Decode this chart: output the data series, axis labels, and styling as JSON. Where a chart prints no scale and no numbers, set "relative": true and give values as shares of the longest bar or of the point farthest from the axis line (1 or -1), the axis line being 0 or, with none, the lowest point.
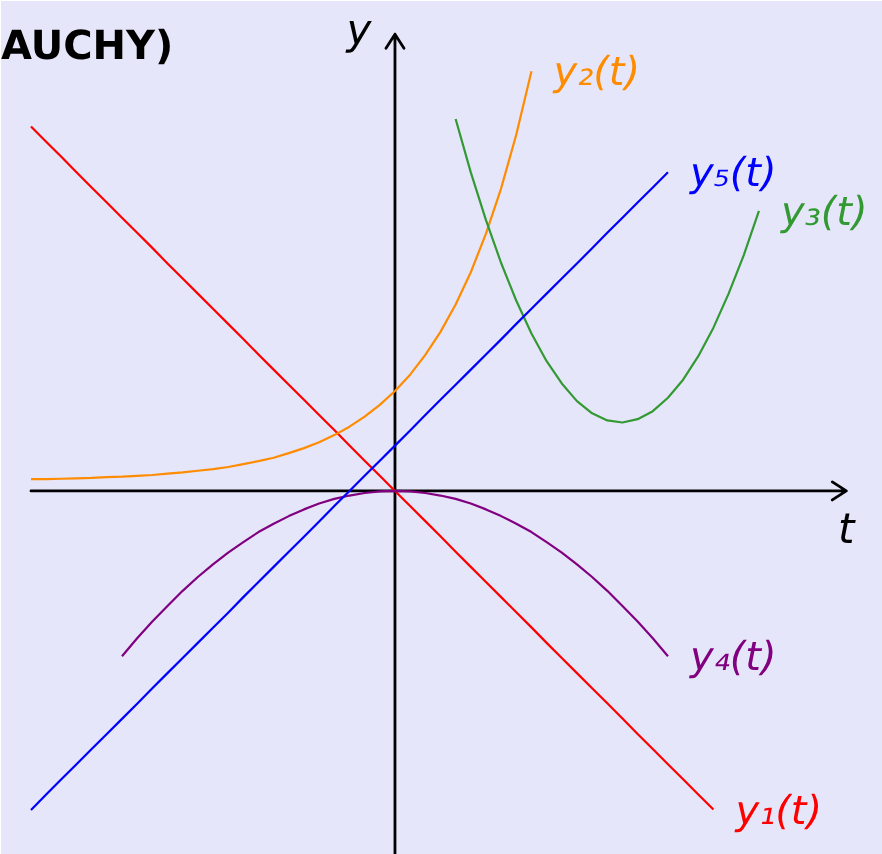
{
  "chart_data": {
    "type": "line",
    "relative": true,
    "title": "AUCHY)",
    "xlabel": "t",
    "ylabel": "y",
    "categories": [
      null,
      null,
      null,
      null,
      null,
      null,
      null,
      null,
      null,
      null,
      null,
      null,
      null,
      null,
      null,
      null,
      null,
      null,
      null,
      null,
      null,
      null,
      null,
      null,
      null,
      null,
      null,
      null,
      null,
      null,
      null,
      null,
      null,
      null,
      null,
      null,
      null,
      null,
      null,
      null,
      null,
      null,
      null,
      null,
      null,
      null,
      null,
      null,
      null
    ],
    "series": [
      {
        "name": "y₁(t)",
        "color": "#ff0000",
        "values": [
          0.868,
          0.832,
          0.796,
          0.759,
          0.723,
          0.687,
          0.651,
          0.615,
          0.579,
          0.542,
          0.506,
          0.47,
          0.434,
          0.398,
          0.362,
          0.325,
          0.289,
          0.253,
          0.217,
          0.181,
          0.145,
          0.108,
          0.072,
          0.036,
          0,
          -0.036,
          -0.072,
          -0.108,
          -0.145,
          -0.181,
          -0.217,
          -0.253,
          -0.289,
          -0.325,
          -0.362,
          -0.398,
          -0.434,
          -0.47,
          -0.506,
          -0.542,
          -0.579,
          -0.615,
          -0.651,
          -0.687,
          -0.723,
          -0.759,
          null,
          null,
          null
        ]
      },
      {
        "name": "y₂(t)",
        "color": "#ff8c00",
        "values": [
          0.028,
          0.028,
          0.029,
          0.03,
          0.031,
          0.033,
          0.034,
          0.036,
          0.038,
          0.041,
          0.044,
          0.048,
          0.052,
          0.057,
          0.064,
          0.071,
          0.079,
          0.09,
          0.102,
          0.116,
          0.133,
          0.153,
          0.177,
          0.205,
          0.238,
          0.277,
          0.324,
          0.379,
          0.444,
          0.521,
          0.613,
          0.721,
          0.849,
          1.0,
          null,
          null,
          null,
          null,
          null,
          null,
          null,
          null,
          null,
          null,
          null,
          null,
          null,
          null,
          null
        ]
      },
      {
        "name": "y₃(t)",
        "color": "#339933",
        "values": [
          null,
          null,
          null,
          null,
          null,
          null,
          null,
          null,
          null,
          null,
          null,
          null,
          null,
          null,
          null,
          null,
          null,
          null,
          null,
          null,
          null,
          null,
          null,
          null,
          null,
          null,
          null,
          null,
          0.886,
          0.759,
          0.645,
          0.543,
          0.453,
          0.375,
          0.309,
          0.256,
          0.214,
          0.185,
          0.168,
          0.163,
          0.171,
          0.19,
          0.222,
          0.265,
          0.321,
          0.389,
          0.47,
          0.562,
          0.667
        ]
      },
      {
        "name": "y₄(t)",
        "color": "#800080",
        "values": [
          null,
          null,
          null,
          null,
          null,
          null,
          -0.394,
          -0.351,
          -0.311,
          -0.274,
          -0.238,
          -0.205,
          -0.175,
          -0.147,
          -0.122,
          -0.098,
          -0.078,
          -0.06,
          -0.044,
          -0.03,
          -0.019,
          -0.011,
          -0.005,
          -0.001,
          0,
          -0.001,
          -0.005,
          -0.011,
          -0.019,
          -0.03,
          -0.044,
          -0.06,
          -0.078,
          -0.098,
          -0.122,
          -0.147,
          -0.175,
          -0.205,
          -0.238,
          -0.274,
          -0.311,
          -0.351,
          -0.394,
          null,
          null,
          null,
          null,
          null,
          null
        ]
      },
      {
        "name": "y₅(t)",
        "color": "#0000ff",
        "values": [
          -0.76,
          -0.723,
          -0.687,
          -0.651,
          -0.615,
          -0.579,
          -0.543,
          -0.507,
          -0.47,
          -0.434,
          -0.398,
          -0.362,
          -0.326,
          -0.29,
          -0.253,
          -0.217,
          -0.181,
          -0.145,
          -0.109,
          -0.073,
          -0.036,
          0,
          0.036,
          0.072,
          0.108,
          0.144,
          0.181,
          0.217,
          0.253,
          0.289,
          0.325,
          0.361,
          0.398,
          0.434,
          0.47,
          0.506,
          0.542,
          0.578,
          0.615,
          0.651,
          0.687,
          0.723,
          0.759,
          null,
          null,
          null,
          null,
          null,
          null
        ]
      }
    ]
  }
}
